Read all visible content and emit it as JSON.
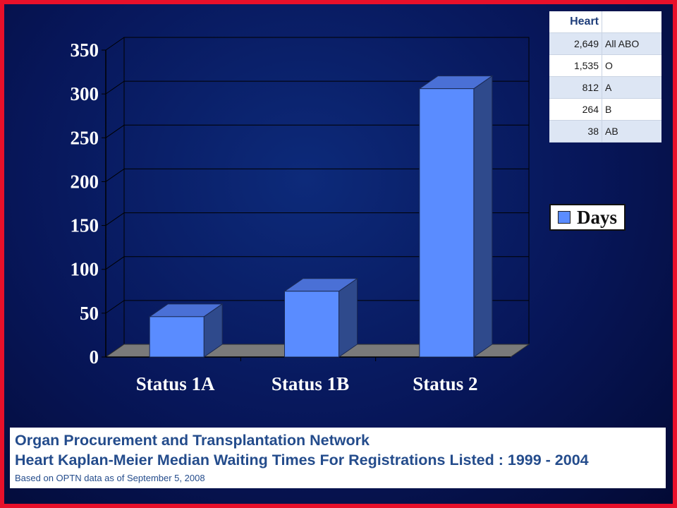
{
  "chart_data": {
    "type": "bar",
    "categories": [
      "Status 1A",
      "Status 1B",
      "Status 2"
    ],
    "series": [
      {
        "name": "Days",
        "values": [
          46,
          75,
          306
        ]
      }
    ],
    "ylim": [
      0,
      350
    ],
    "yticks": [
      0,
      50,
      100,
      150,
      200,
      250,
      300,
      350
    ],
    "grid": true,
    "legend_position": "right",
    "bar_color": "#5a8cff"
  },
  "legend": {
    "label": "Days"
  },
  "table": {
    "header": "Heart",
    "rows": [
      {
        "count": "2,649",
        "group": "All ABO"
      },
      {
        "count": "1,535",
        "group": "O"
      },
      {
        "count": "812",
        "group": "A"
      },
      {
        "count": "264",
        "group": "B"
      },
      {
        "count": "38",
        "group": "AB"
      }
    ]
  },
  "footer": {
    "line1": "Organ Procurement and Transplantation Network",
    "line2": "Heart Kaplan-Meier Median Waiting Times For Registrations Listed : 1999 - 2004",
    "line3": "Based on OPTN data as of September 5, 2008"
  }
}
